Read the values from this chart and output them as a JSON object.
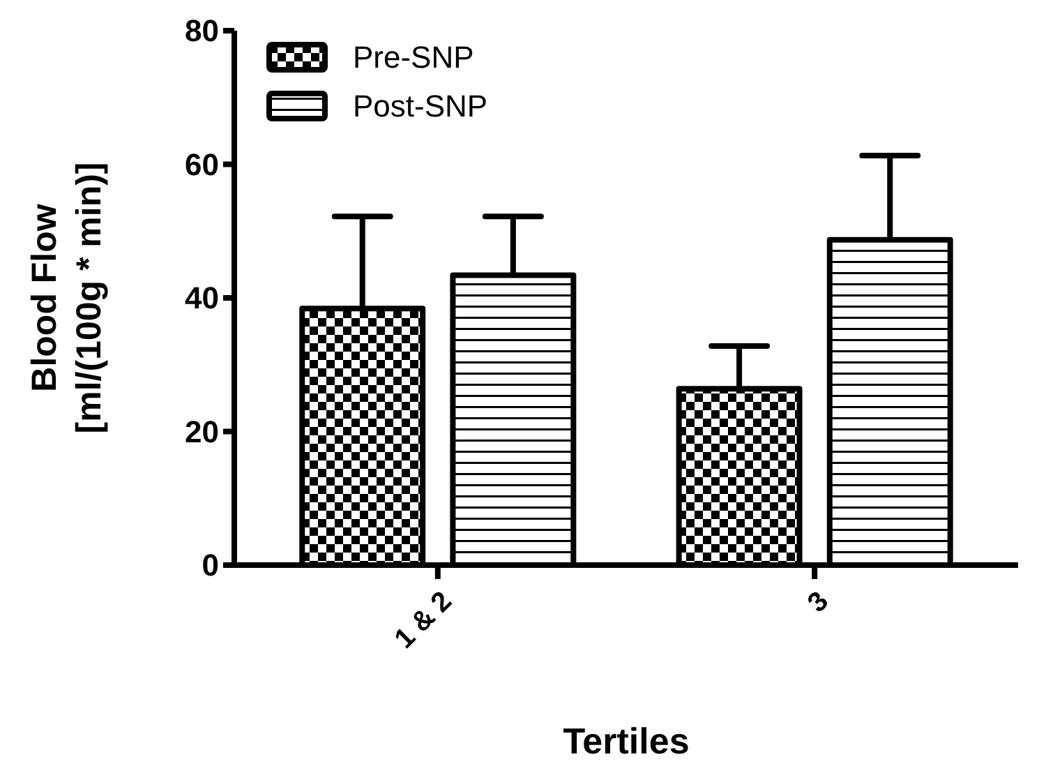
{
  "chart_data": {
    "type": "bar",
    "xlabel": "Tertiles",
    "ylabel": "Blood Flow\n[ml/(100g * min)]",
    "categories": [
      "1 & 2",
      "3"
    ],
    "ylim": [
      0,
      80
    ],
    "yticks": [
      0,
      20,
      40,
      60,
      80
    ],
    "grid": false,
    "legend": "top left",
    "series": [
      {
        "name": "Pre-SNP",
        "color": "#000000",
        "values": [
          38.4,
          26.4
        ],
        "errors": [
          [
            38.4,
            52.2
          ],
          [
            26.4,
            32.8
          ]
        ]
      },
      {
        "name": "Post-SNP",
        "color": "#000000",
        "values": [
          43.4,
          48.7
        ],
        "errors": [
          [
            43.4,
            52.2
          ],
          [
            48.7,
            61.3
          ]
        ]
      }
    ]
  }
}
